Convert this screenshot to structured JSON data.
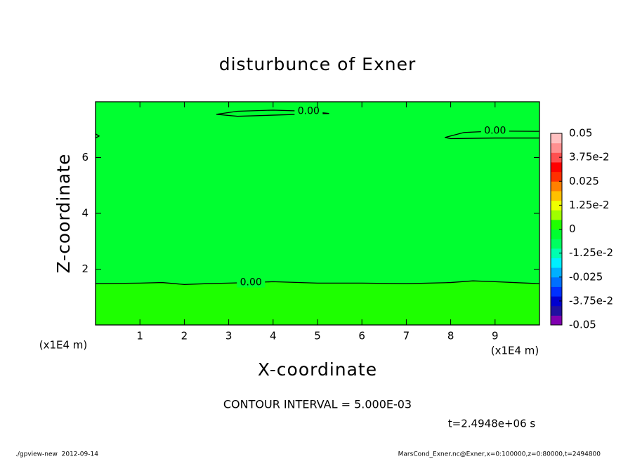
{
  "chart_data": {
    "type": "contour",
    "title": "disturbunce of Exner",
    "x_label": "X-coordinate",
    "y_label": "Z-coordinate",
    "x_unit": "(x1E4 m)",
    "y_unit": "(x1E4 m)",
    "xlim": [
      0,
      10
    ],
    "ylim": [
      0,
      8
    ],
    "xticks": [
      1,
      2,
      3,
      4,
      5,
      6,
      7,
      8,
      9
    ],
    "yticks": [
      2,
      4,
      6
    ],
    "region_colors": [
      "#00ff30",
      "#1eff00"
    ],
    "contours": [
      {
        "level": {
          "value": 0,
          "label": "0.00"
        },
        "x": [
          0,
          1,
          1.5,
          2,
          2.5,
          3,
          3.5,
          4,
          5,
          6,
          7,
          8,
          8.5,
          9,
          10
        ],
        "y": [
          1.48,
          1.5,
          1.52,
          1.45,
          1.48,
          1.5,
          1.52,
          1.55,
          1.5,
          1.5,
          1.48,
          1.52,
          1.58,
          1.55,
          1.48
        ]
      },
      {
        "level": {
          "value": 0,
          "label": "0.00"
        },
        "x": [
          2.72,
          3.2,
          4,
          4.8,
          5.26,
          4.8,
          4,
          3.2,
          2.72
        ],
        "y": [
          7.55,
          7.66,
          7.7,
          7.66,
          7.58,
          7.56,
          7.52,
          7.48,
          7.55
        ]
      },
      {
        "level": {
          "value": 0,
          "label": "0.00"
        },
        "x": [
          10,
          9,
          8.3,
          7.87,
          8,
          9,
          10
        ],
        "y": [
          6.94,
          6.95,
          6.9,
          6.72,
          6.68,
          6.7,
          6.7
        ]
      },
      {
        "level": {
          "value": 0,
          "label": "0.00"
        },
        "x": [
          0,
          0.08,
          0
        ],
        "y": [
          6.85,
          6.77,
          6.7
        ]
      }
    ],
    "colorbar": {
      "lim": [
        -0.05,
        0.05
      ],
      "ticks": [
        -0.05,
        {
          "value": -0.0375,
          "label": "-3.75e-2"
        },
        -0.025,
        {
          "value": -0.0125,
          "label": "-1.25e-2"
        },
        0,
        {
          "value": 0.0125,
          "label": "1.25e-2"
        },
        0.025,
        {
          "value": 0.0375,
          "label": "3.75e-2"
        },
        0.05
      ],
      "colors": [
        "#8000b0",
        "#2010a0",
        "#0000d0",
        "#0030ff",
        "#0070ff",
        "#00b0ff",
        "#00f0ff",
        "#00ffb0",
        "#00ff60",
        "#00ff30",
        "#20ff00",
        "#a0ff00",
        "#f0ff00",
        "#ffc000",
        "#ff8000",
        "#ff3000",
        "#ff0000",
        "#ff5050",
        "#ff9090",
        "#ffc0c0"
      ]
    },
    "contour_interval": "CONTOUR INTERVAL = 5.000E-03",
    "time_label": "t=2.4948e+06 s",
    "footer_left": "./gpview-new  2012-09-14",
    "footer_right": "MarsCond_Exner.nc@Exner,x=0:100000,z=0:80000,t=2494800"
  }
}
